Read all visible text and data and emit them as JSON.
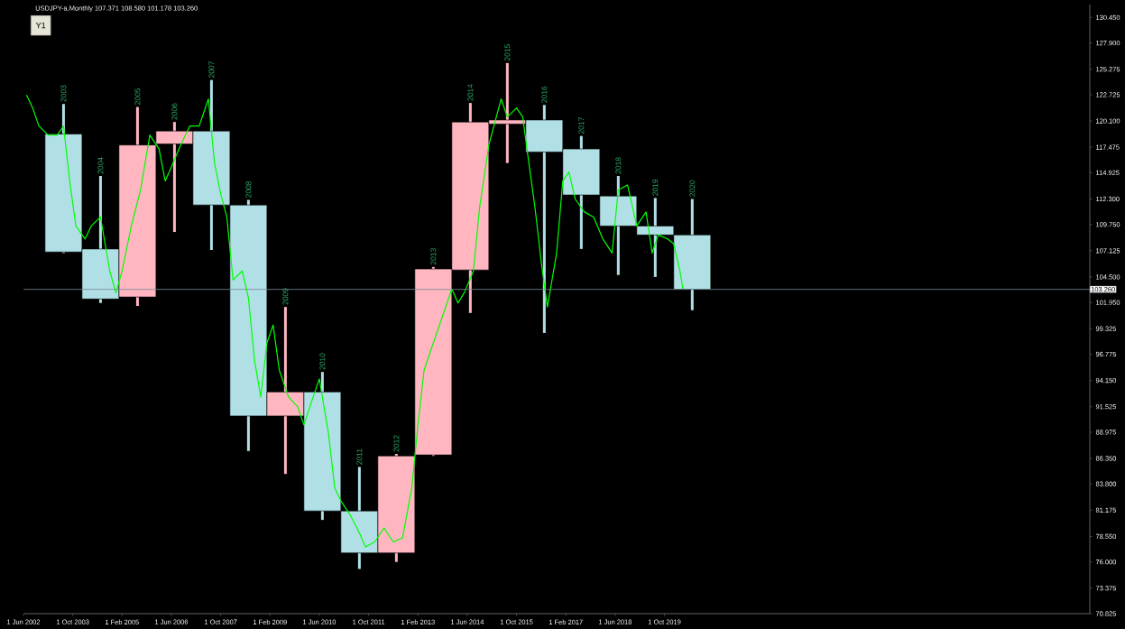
{
  "chart_data": {
    "type": "candlestick",
    "title": "USDJPY-a,Monthly  107.371 108.580 101.178 103.260",
    "xlim": [
      "2002-06",
      "2031-04"
    ],
    "ylim": [
      70.825,
      131.75
    ],
    "xticks": [
      {
        "value": "2002-06",
        "label": "1 Jun 2002"
      },
      {
        "value": "2003-10",
        "label": "1 Oct 2003"
      },
      {
        "value": "2005-02",
        "label": "1 Feb 2005"
      },
      {
        "value": "2006-06",
        "label": "1 Jun 2006"
      },
      {
        "value": "2007-10",
        "label": "1 Oct 2007"
      },
      {
        "value": "2009-02",
        "label": "1 Feb 2009"
      },
      {
        "value": "2010-06",
        "label": "1 Jun 2010"
      },
      {
        "value": "2011-10",
        "label": "1 Oct 2011"
      },
      {
        "value": "2013-02",
        "label": "1 Feb 2013"
      },
      {
        "value": "2014-06",
        "label": "1 Jun 2014"
      },
      {
        "value": "2015-10",
        "label": "1 Oct 2015"
      },
      {
        "value": "2017-02",
        "label": "1 Feb 2017"
      },
      {
        "value": "2018-06",
        "label": "1 Jun 2018"
      },
      {
        "value": "2019-10",
        "label": "1 Oct 2019"
      }
    ],
    "yticks": [
      {
        "value": 130.45,
        "label": "130.450"
      },
      {
        "value": 127.9,
        "label": "127.900"
      },
      {
        "value": 125.275,
        "label": "125.275"
      },
      {
        "value": 122.725,
        "label": "122.725"
      },
      {
        "value": 120.1,
        "label": "120.100"
      },
      {
        "value": 117.475,
        "label": "117.475"
      },
      {
        "value": 114.925,
        "label": "114.925"
      },
      {
        "value": 112.3,
        "label": "112.300"
      },
      {
        "value": 109.75,
        "label": "109.750"
      },
      {
        "value": 107.125,
        "label": "107.125"
      },
      {
        "value": 104.5,
        "label": "104.500"
      },
      {
        "value": 101.95,
        "label": "101.950"
      },
      {
        "value": 99.325,
        "label": "99.325"
      },
      {
        "value": 96.775,
        "label": "96.775"
      },
      {
        "value": 94.15,
        "label": "94.150"
      },
      {
        "value": 91.525,
        "label": "91.525"
      },
      {
        "value": 88.975,
        "label": "88.975"
      },
      {
        "value": 86.35,
        "label": "86.350"
      },
      {
        "value": 83.8,
        "label": "83.800"
      },
      {
        "value": 81.175,
        "label": "81.175"
      },
      {
        "value": 78.55,
        "label": "78.550"
      },
      {
        "value": 76.0,
        "label": "76.000"
      },
      {
        "value": 73.375,
        "label": "73.375"
      },
      {
        "value": 70.825,
        "label": "70.825"
      }
    ],
    "series": [
      {
        "x": [
          "2003-07",
          "2004-07",
          "2005-07",
          "2006-07",
          "2007-07",
          "2008-07",
          "2009-07",
          "2010-07",
          "2011-07",
          "2012-07",
          "2013-07",
          "2014-07",
          "2015-07",
          "2016-07",
          "2017-07",
          "2018-07",
          "2019-07",
          "2020-07"
        ],
        "ohlc": [
          [
            118.8,
            121.8,
            106.9,
            107.0
          ],
          [
            107.3,
            114.6,
            101.9,
            102.3
          ],
          [
            102.5,
            121.5,
            101.6,
            117.7
          ],
          [
            117.8,
            120.0,
            109.0,
            119.1
          ],
          [
            119.1,
            124.2,
            107.2,
            111.7
          ],
          [
            111.7,
            112.2,
            87.1,
            90.6
          ],
          [
            90.6,
            101.5,
            84.8,
            93.0
          ],
          [
            93.0,
            95.0,
            80.2,
            81.1
          ],
          [
            81.1,
            85.5,
            75.3,
            76.9
          ],
          [
            76.9,
            86.8,
            76.0,
            86.6
          ],
          [
            86.7,
            105.5,
            86.6,
            105.3
          ],
          [
            105.2,
            121.9,
            100.9,
            120.0
          ],
          [
            119.8,
            125.9,
            115.9,
            120.2
          ],
          [
            120.2,
            121.7,
            98.9,
            117.0
          ],
          [
            117.3,
            118.6,
            107.3,
            112.7
          ],
          [
            112.6,
            114.6,
            104.7,
            109.6
          ],
          [
            109.6,
            112.4,
            104.5,
            108.7
          ],
          [
            108.7,
            112.3,
            101.18,
            103.26
          ]
        ],
        "colors": [
          "#b0e0e6",
          "#b0e0e6",
          "#ffb6c1",
          "#ffb6c1",
          "#b0e0e6",
          "#b0e0e6",
          "#ffb6c1",
          "#b0e0e6",
          "#b0e0e6",
          "#ffb6c1",
          "#ffb6c1",
          "#ffb6c1",
          "#ffb6c1",
          "#b0e0e6",
          "#b0e0e6",
          "#b0e0e6",
          "#b0e0e6",
          "#b0e0e6"
        ]
      },
      {
        "type": "line",
        "color": "#00ff00",
        "x": [
          "2002-07",
          "2002-09",
          "2002-11",
          "2003-02",
          "2003-05",
          "2003-07",
          "2003-09",
          "2003-11",
          "2004-02",
          "2004-04",
          "2004-07",
          "2004-10",
          "2004-12",
          "2005-02",
          "2005-05",
          "2005-08",
          "2005-11",
          "2006-02",
          "2006-04",
          "2006-06",
          "2006-09",
          "2006-12",
          "2007-03",
          "2007-06",
          "2007-08",
          "2007-10",
          "2007-12",
          "2008-02",
          "2008-05",
          "2008-07",
          "2008-09",
          "2008-11",
          "2009-01",
          "2009-03",
          "2009-05",
          "2009-08",
          "2009-11",
          "2010-01",
          "2010-04",
          "2010-06",
          "2010-09",
          "2010-11",
          "2011-01",
          "2011-04",
          "2011-07",
          "2011-09",
          "2011-12",
          "2012-03",
          "2012-06",
          "2012-09",
          "2012-12",
          "2013-02",
          "2013-04",
          "2013-07",
          "2013-10",
          "2014-01",
          "2014-03",
          "2014-05",
          "2014-08",
          "2014-10",
          "2015-01",
          "2015-03",
          "2015-05",
          "2015-07",
          "2015-10",
          "2015-12",
          "2016-02",
          "2016-04",
          "2016-06",
          "2016-08",
          "2016-11",
          "2017-01",
          "2017-03",
          "2017-05",
          "2017-08",
          "2017-11",
          "2018-02",
          "2018-05",
          "2018-07",
          "2018-10",
          "2019-01",
          "2019-04",
          "2019-06",
          "2019-08",
          "2019-11",
          "2020-01",
          "2020-03",
          "2020-04"
        ],
        "values": [
          122.7,
          121.4,
          119.6,
          118.7,
          118.7,
          119.6,
          114.1,
          109.6,
          108.3,
          109.6,
          110.5,
          105.1,
          102.9,
          105.1,
          109.6,
          113.2,
          118.7,
          117.3,
          114.1,
          115.5,
          117.7,
          119.6,
          119.6,
          122.3,
          115.9,
          112.8,
          110.5,
          104.2,
          105.1,
          102.4,
          96.1,
          92.5,
          97.9,
          99.7,
          95.2,
          92.5,
          91.5,
          89.7,
          92.5,
          94.3,
          88.8,
          83.4,
          82.1,
          80.7,
          78.9,
          77.5,
          78.0,
          79.4,
          78.0,
          78.4,
          83.4,
          89.7,
          95.2,
          97.9,
          100.6,
          103.3,
          101.9,
          102.9,
          105.1,
          111.4,
          117.7,
          120.0,
          122.3,
          120.5,
          121.4,
          120.5,
          115.9,
          111.4,
          106.0,
          101.5,
          106.9,
          114.1,
          115.0,
          112.3,
          111.0,
          110.5,
          108.3,
          106.9,
          113.2,
          113.7,
          109.6,
          111.0,
          106.9,
          108.7,
          108.3,
          107.8,
          105.1,
          103.3
        ]
      }
    ],
    "ref_lines": [
      {
        "axis": "y",
        "value": 103.26,
        "label": "103.260",
        "color": "#778899"
      }
    ],
    "annotations": [
      "Y1",
      {
        "text": "2003",
        "x": "2003-07",
        "y": 121.8
      },
      {
        "text": "2004",
        "x": "2004-07",
        "y": 114.6
      },
      {
        "text": "2005",
        "x": "2005-07",
        "y": 121.5
      },
      {
        "text": "2006",
        "x": "2006-07",
        "y": 120.0
      },
      {
        "text": "2007",
        "x": "2007-07",
        "y": 124.2
      },
      {
        "text": "2008",
        "x": "2008-07",
        "y": 112.2
      },
      {
        "text": "2009",
        "x": "2009-07",
        "y": 101.5
      },
      {
        "text": "2010",
        "x": "2010-07",
        "y": 95.0
      },
      {
        "text": "2011",
        "x": "2011-07",
        "y": 85.5
      },
      {
        "text": "2012",
        "x": "2012-07",
        "y": 86.8
      },
      {
        "text": "2013",
        "x": "2013-07",
        "y": 105.5
      },
      {
        "text": "2014",
        "x": "2014-07",
        "y": 121.9
      },
      {
        "text": "2015",
        "x": "2015-07",
        "y": 125.9
      },
      {
        "text": "2016",
        "x": "2016-07",
        "y": 121.7
      },
      {
        "text": "2017",
        "x": "2017-07",
        "y": 118.6
      },
      {
        "text": "2018",
        "x": "2018-07",
        "y": 114.6
      },
      {
        "text": "2019",
        "x": "2019-07",
        "y": 112.4
      },
      {
        "text": "2020",
        "x": "2020-07",
        "y": 112.3
      }
    ]
  }
}
